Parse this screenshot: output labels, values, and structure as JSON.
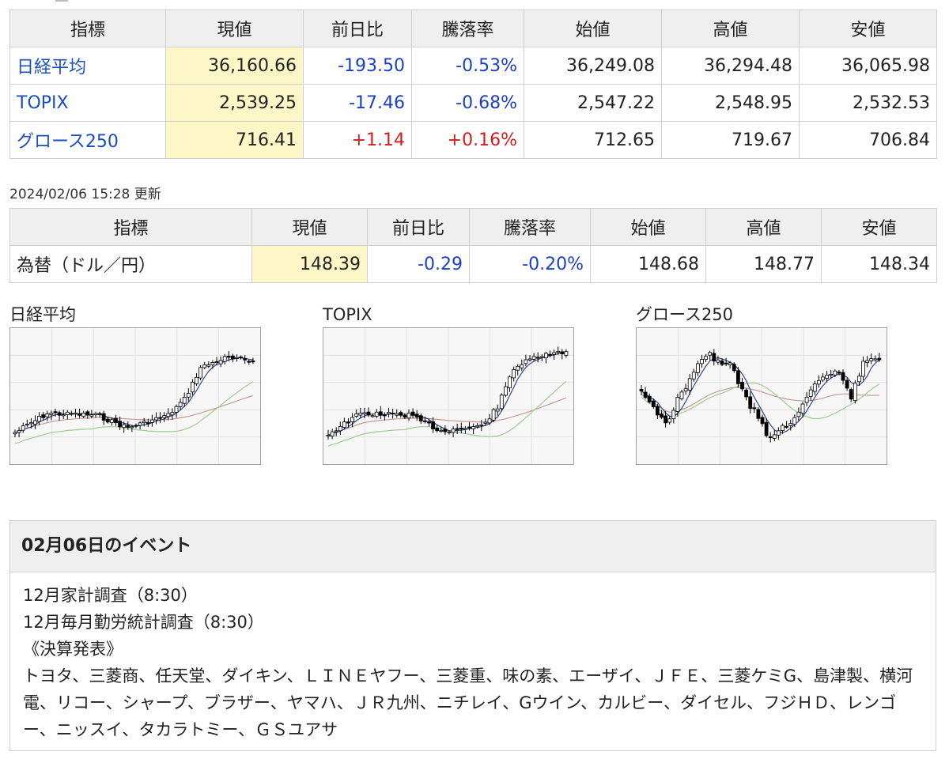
{
  "market_table": {
    "headers": [
      "指標",
      "現値",
      "前日比",
      "騰落率",
      "始値",
      "高値",
      "安値"
    ],
    "rows": [
      {
        "name": "日経平均",
        "current": "36,160.66",
        "change": "-193.50",
        "rate": "-0.53%",
        "open": "36,249.08",
        "high": "36,294.48",
        "low": "36,065.98",
        "direction": "neg"
      },
      {
        "name": "TOPIX",
        "current": "2,539.25",
        "change": "-17.46",
        "rate": "-0.68%",
        "open": "2,547.22",
        "high": "2,548.95",
        "low": "2,532.53",
        "direction": "neg"
      },
      {
        "name": "グロース250",
        "current": "716.41",
        "change": "+1.14",
        "rate": "+0.16%",
        "open": "712.65",
        "high": "719.67",
        "low": "706.84",
        "direction": "pos"
      }
    ]
  },
  "updated": "2024/02/06 15:28 更新",
  "fx_table": {
    "headers": [
      "指標",
      "現値",
      "前日比",
      "騰落率",
      "始値",
      "高値",
      "安値"
    ],
    "rows": [
      {
        "name": "為替（ドル／円）",
        "current": "148.39",
        "change": "-0.29",
        "rate": "-0.20%",
        "open": "148.68",
        "high": "148.77",
        "low": "148.34",
        "direction": "neg"
      }
    ]
  },
  "charts": [
    {
      "title": "日経平均"
    },
    {
      "title": "TOPIX"
    },
    {
      "title": "グロース250"
    }
  ],
  "events": {
    "title": "02月06日のイベント",
    "lines": [
      "12月家計調査（8:30）",
      "12月毎月勤労統計調査（8:30）",
      "《決算発表》",
      "トヨタ、三菱商、任天堂、ダイキン、ＬＩＮＥヤフー、三菱重、味の素、エーザイ、ＪＦＥ、三菱ケミG、島津製、横河電、リコー、シャープ、ブラザー、ヤマハ、ＪＲ九州、ニチレイ、Gウイン、カルビー、ダイセル、フジＨＤ、レンゴー、ニッスイ、タカラトミー、ＧＳユアサ"
    ]
  },
  "colors": {
    "negative": "#1a3fc4",
    "positive": "#d41c1c",
    "link": "#1a4ec0",
    "highlight": "#fdf7c8",
    "header_bg": "#efefef"
  }
}
